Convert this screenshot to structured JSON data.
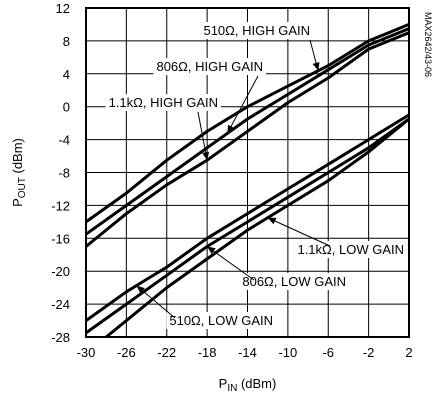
{
  "chart_data": {
    "type": "line",
    "title": "",
    "xlabel": {
      "main": "P",
      "sub": "IN",
      "unit": " (dBm)"
    },
    "ylabel": {
      "main": "P",
      "sub": "OUT",
      "unit": " (dBm)"
    },
    "xlim": [
      -30,
      2
    ],
    "ylim": [
      -28,
      12
    ],
    "grid": true,
    "x_ticks": [
      "-30",
      "-26",
      "-22",
      "-18",
      "-14",
      "-10",
      "-6",
      "-2",
      "2"
    ],
    "y_ticks": [
      "12",
      "8",
      "4",
      "0",
      "-4",
      "-8",
      "-12",
      "-16",
      "-20",
      "-24",
      "-28"
    ],
    "side_label": "MAX2642/43-06",
    "series": [
      {
        "name": "510Ω, HIGH GAIN",
        "points": [
          [
            -30,
            -14
          ],
          [
            -26,
            -10.5
          ],
          [
            -22,
            -6.5
          ],
          [
            -18,
            -3
          ],
          [
            -14,
            0
          ],
          [
            -10,
            2.5
          ],
          [
            -6,
            5
          ],
          [
            -2,
            8
          ],
          [
            2,
            10
          ]
        ]
      },
      {
        "name": "806Ω, HIGH GAIN",
        "points": [
          [
            -30,
            -15.5
          ],
          [
            -26,
            -12
          ],
          [
            -22,
            -8.5
          ],
          [
            -18,
            -5
          ],
          [
            -14,
            -1.5
          ],
          [
            -10,
            1.5
          ],
          [
            -6,
            4.5
          ],
          [
            -2,
            7.5
          ],
          [
            2,
            9.5
          ]
        ]
      },
      {
        "name": "1.1kΩ, HIGH GAIN",
        "points": [
          [
            -30,
            -17
          ],
          [
            -26,
            -13
          ],
          [
            -22,
            -9.5
          ],
          [
            -18,
            -6.5
          ],
          [
            -14,
            -3
          ],
          [
            -10,
            0.5
          ],
          [
            -6,
            3.5
          ],
          [
            -2,
            7
          ],
          [
            2,
            9
          ]
        ]
      },
      {
        "name": "510Ω, LOW GAIN",
        "points": [
          [
            -30,
            -26
          ],
          [
            -26,
            -22.5
          ],
          [
            -24,
            -21
          ],
          [
            -22,
            -19.5
          ],
          [
            -18,
            -16
          ],
          [
            -14,
            -13
          ],
          [
            -10,
            -10
          ],
          [
            -6,
            -7
          ],
          [
            -2,
            -4
          ],
          [
            2,
            -1
          ]
        ]
      },
      {
        "name": "806Ω, LOW GAIN",
        "points": [
          [
            -30,
            -27.5
          ],
          [
            -26,
            -24
          ],
          [
            -22,
            -20.5
          ],
          [
            -18,
            -17
          ],
          [
            -14,
            -14
          ],
          [
            -10,
            -11
          ],
          [
            -6,
            -8
          ],
          [
            -2,
            -5
          ],
          [
            2,
            -1.5
          ]
        ]
      },
      {
        "name": "1.1kΩ, LOW GAIN",
        "points": [
          [
            -28,
            -28
          ],
          [
            -26,
            -26
          ],
          [
            -22,
            -22
          ],
          [
            -18,
            -18.5
          ],
          [
            -14,
            -15
          ],
          [
            -10,
            -12
          ],
          [
            -6,
            -9
          ],
          [
            -2,
            -5.5
          ],
          [
            2,
            -1.5
          ]
        ]
      }
    ],
    "annotations": [
      {
        "text": "510Ω, HIGH GAIN",
        "series": 0
      },
      {
        "text": "806Ω, HIGH GAIN",
        "series": 1
      },
      {
        "text": "1.1kΩ, HIGH GAIN",
        "series": 2
      },
      {
        "text": "1.1kΩ, LOW GAIN",
        "series": 5
      },
      {
        "text": "806Ω, LOW GAIN",
        "series": 4
      },
      {
        "text": "510Ω, LOW GAIN",
        "series": 3
      }
    ]
  }
}
